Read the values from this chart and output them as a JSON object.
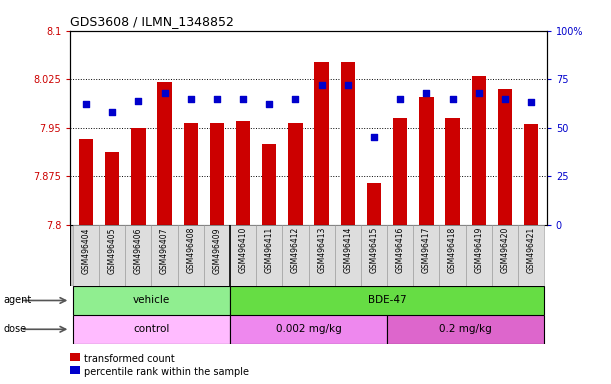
{
  "title": "GDS3608 / ILMN_1348852",
  "samples": [
    "GSM496404",
    "GSM496405",
    "GSM496406",
    "GSM496407",
    "GSM496408",
    "GSM496409",
    "GSM496410",
    "GSM496411",
    "GSM496412",
    "GSM496413",
    "GSM496414",
    "GSM496415",
    "GSM496416",
    "GSM496417",
    "GSM496418",
    "GSM496419",
    "GSM496420",
    "GSM496421"
  ],
  "bar_values": [
    7.932,
    7.912,
    7.95,
    8.02,
    7.957,
    7.957,
    7.96,
    7.925,
    7.957,
    8.052,
    8.052,
    7.865,
    7.965,
    7.998,
    7.965,
    8.03,
    8.01,
    7.955
  ],
  "percentile_values": [
    62,
    58,
    64,
    68,
    65,
    65,
    65,
    62,
    65,
    72,
    72,
    45,
    65,
    68,
    65,
    68,
    65,
    63
  ],
  "ylim_left": [
    7.8,
    8.1
  ],
  "ylim_right": [
    0,
    100
  ],
  "yticks_left": [
    7.8,
    7.875,
    7.95,
    8.025,
    8.1
  ],
  "yticks_right": [
    0,
    25,
    50,
    75,
    100
  ],
  "ytick_labels_left": [
    "7.8",
    "7.875",
    "7.95",
    "8.025",
    "8.1"
  ],
  "ytick_labels_right": [
    "0",
    "25",
    "50",
    "75",
    "100%"
  ],
  "bar_color": "#cc0000",
  "dot_color": "#0000cc",
  "bar_bottom": 7.8,
  "agent_data": [
    {
      "text": "vehicle",
      "start": 0,
      "end": 5,
      "color": "#90ee90"
    },
    {
      "text": "BDE-47",
      "start": 6,
      "end": 17,
      "color": "#66dd44"
    }
  ],
  "dose_data": [
    {
      "text": "control",
      "start": 0,
      "end": 5,
      "color": "#ffbbff"
    },
    {
      "text": "0.002 mg/kg",
      "start": 6,
      "end": 11,
      "color": "#ee88ee"
    },
    {
      "text": "0.2 mg/kg",
      "start": 12,
      "end": 17,
      "color": "#dd66cc"
    }
  ],
  "grid_color": "black",
  "left_tick_color": "#cc0000",
  "right_tick_color": "#0000cc",
  "background_color": "#ffffff",
  "vehicle_separator": 5,
  "dose_separator1": 5,
  "dose_separator2": 11
}
